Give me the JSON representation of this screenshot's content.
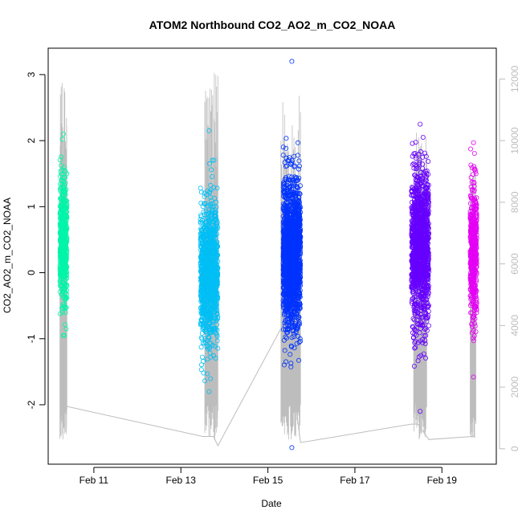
{
  "chart_data": {
    "type": "scatter",
    "title": "ATOM2 Northbound CO2_AO2_m_CO2_NOAA",
    "xlabel": "Date",
    "ylabel": "CO2_AO2_m_CO2_NOAA",
    "x_tick_labels": [
      "Feb 11",
      "Feb 13",
      "Feb 15",
      "Feb 17",
      "Feb 19"
    ],
    "x_ticks_day": [
      11,
      13,
      15,
      17,
      19
    ],
    "xlim_day": [
      9.95,
      20.25
    ],
    "ylim": [
      -2.9,
      3.4
    ],
    "y_ticks": [
      -2,
      -1,
      0,
      1,
      2,
      3
    ],
    "y2lim": [
      -500,
      13000
    ],
    "y2_ticks": [
      0,
      2000,
      4000,
      6000,
      8000,
      10000,
      12000
    ],
    "grid": false,
    "colors": {
      "frame": "#000000",
      "altitude_line": "#bdbdbd",
      "series": [
        "#00f5a8",
        "#00bff5",
        "#0033ff",
        "#6600ff",
        "#e500f5"
      ]
    },
    "series": [
      {
        "x_range_day": [
          10.22,
          10.38
        ],
        "y_center": 0.45,
        "y_spread": 0.45,
        "y_min": -0.95,
        "y_max": 2.1,
        "n": 600
      },
      {
        "x_range_day": [
          13.45,
          13.85
        ],
        "y_center": 0.0,
        "y_spread": 0.55,
        "y_min": -1.8,
        "y_max": 2.15,
        "n": 1100
      },
      {
        "x_range_day": [
          15.35,
          15.75
        ],
        "y_center": 0.3,
        "y_spread": 0.55,
        "y_min": -2.65,
        "y_max": 3.2,
        "n": 1700
      },
      {
        "x_range_day": [
          18.3,
          18.7
        ],
        "y_center": 0.4,
        "y_spread": 0.55,
        "y_min": -2.1,
        "y_max": 2.25,
        "n": 1300
      },
      {
        "x_range_day": [
          19.65,
          19.8
        ],
        "y_center": 0.35,
        "y_spread": 0.5,
        "y_min": -1.58,
        "y_max": 1.97,
        "n": 500
      }
    ],
    "altitude_trace": {
      "baseline_points": [
        [
          10.3,
          1400
        ],
        [
          13.5,
          400
        ],
        [
          13.75,
          400
        ],
        [
          13.85,
          100
        ],
        [
          15.3,
          3900
        ],
        [
          15.4,
          4100
        ],
        [
          15.75,
          200
        ],
        [
          18.3,
          800
        ],
        [
          18.45,
          800
        ],
        [
          18.7,
          300
        ],
        [
          19.7,
          400
        ],
        [
          19.75,
          400
        ]
      ],
      "bursts": [
        {
          "x_range_day": [
            10.22,
            10.38
          ],
          "max": 11900
        },
        {
          "x_range_day": [
            13.55,
            13.85
          ],
          "max": 12200
        },
        {
          "x_range_day": [
            15.3,
            15.75
          ],
          "max": 11500
        },
        {
          "x_range_day": [
            18.35,
            18.65
          ],
          "max": 10300
        },
        {
          "x_range_day": [
            19.65,
            19.78
          ],
          "max": 9400
        }
      ]
    }
  }
}
